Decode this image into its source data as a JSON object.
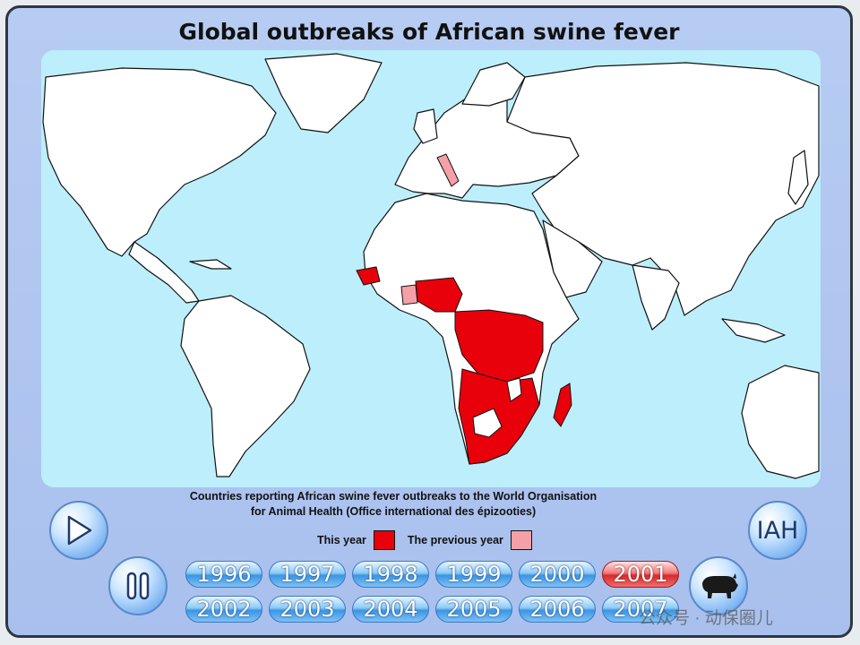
{
  "title": "Global outbreaks of African swine fever",
  "caption_line1": "Countries reporting African swine fever outbreaks to the World Organisation",
  "caption_line2": "for Animal Health (Office international des épizooties)",
  "legend": {
    "this_year_label": "This year",
    "this_year_color": "#e8000b",
    "previous_year_label": "The previous year",
    "previous_year_color": "#f4a0a6"
  },
  "controls": {
    "play_icon": "play-icon",
    "pause_icon": "pause-icon",
    "iah_label": "IAH",
    "pig_icon": "pig-icon"
  },
  "years_row1": [
    "1996",
    "1997",
    "1998",
    "1999",
    "2000",
    "2001"
  ],
  "years_row2": [
    "2002",
    "2003",
    "2004",
    "2005",
    "2006",
    "2007"
  ],
  "selected_year": "2001",
  "watermark": "公众号 · 动保圈儿",
  "colors": {
    "ocean": "#bdeefb",
    "land": "#ffffff",
    "border": "#111111",
    "frame": "#b7ccf2"
  }
}
